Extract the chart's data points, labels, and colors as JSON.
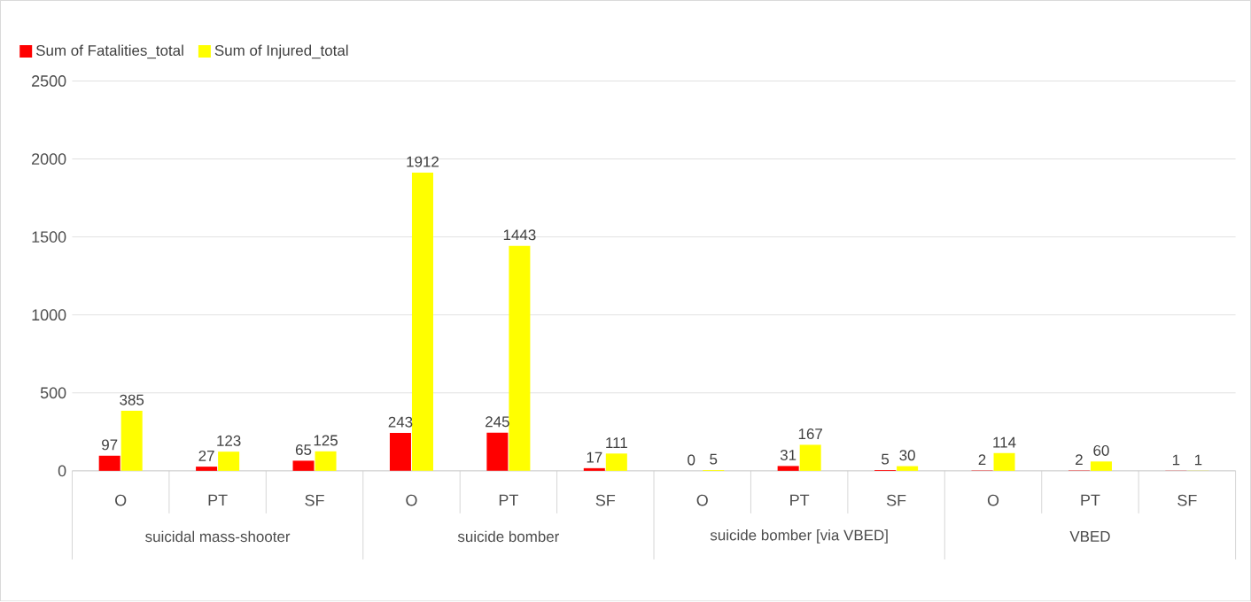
{
  "chart_data": {
    "type": "bar",
    "categories": [
      "O",
      "PT",
      "SF",
      "O",
      "PT",
      "SF",
      "O",
      "PT",
      "SF",
      "O",
      "PT",
      "SF"
    ],
    "series": [
      {
        "name": "Sum of Fatalities_total",
        "color": "#ff0000",
        "values": [
          97,
          27,
          65,
          243,
          245,
          17,
          0,
          31,
          5,
          2,
          2,
          1
        ]
      },
      {
        "name": "Sum of Injured_total",
        "color": "#ffff00",
        "values": [
          385,
          123,
          125,
          1912,
          1443,
          111,
          5,
          167,
          30,
          114,
          60,
          1
        ]
      }
    ],
    "annotations": [
      "suicidal mass-shooter",
      "suicide bomber",
      "suicide bomber [via VBED]",
      "VBED"
    ],
    "ylim": [
      0,
      2500
    ],
    "yticks": [
      0,
      500,
      1000,
      1500,
      2000,
      2500
    ],
    "grid": "y",
    "legend": "top left",
    "data_labels": true
  }
}
